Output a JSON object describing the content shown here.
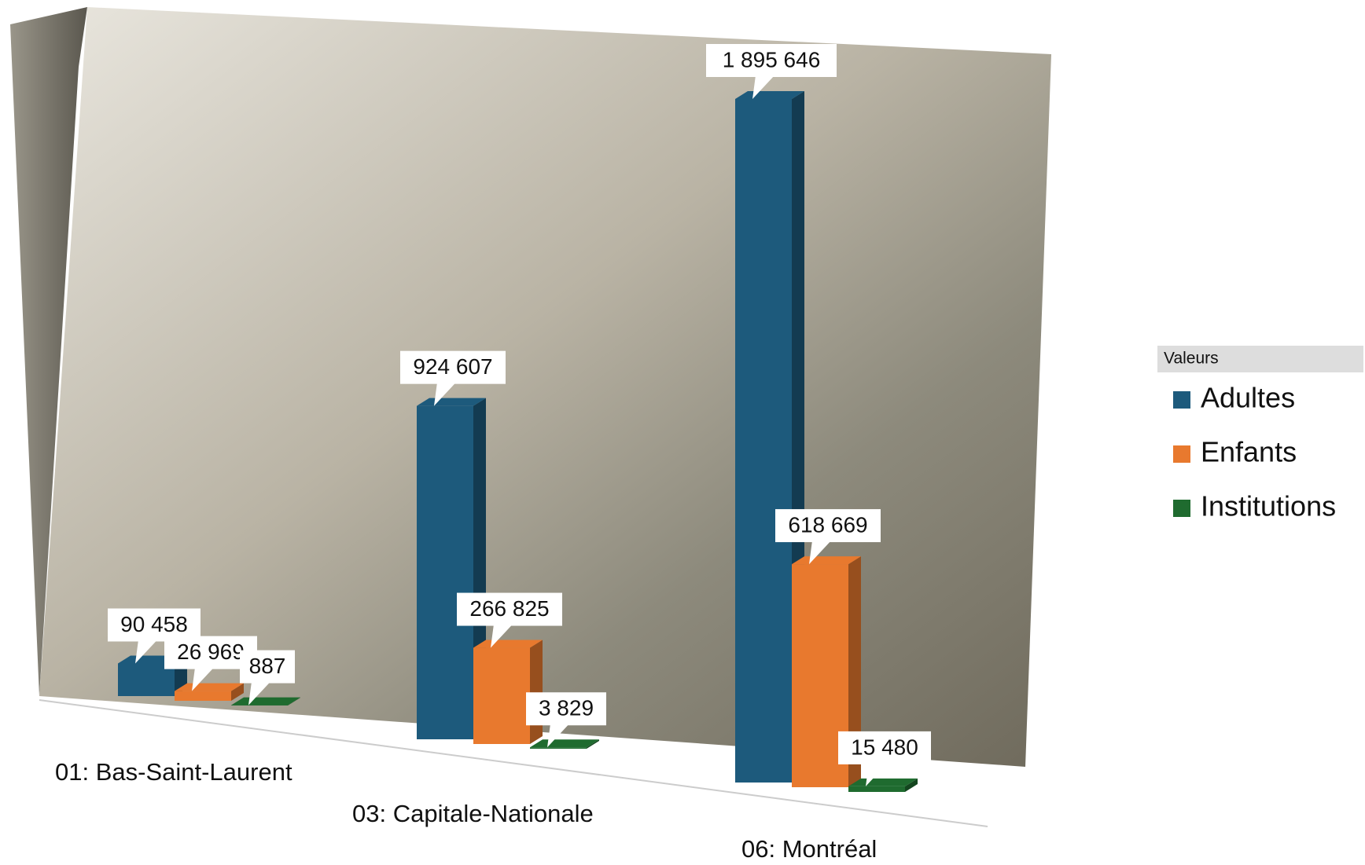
{
  "chart_data": {
    "type": "bar",
    "categories": [
      "01: Bas-Saint-Laurent",
      "03: Capitale-Nationale",
      "06: Montréal"
    ],
    "series": [
      {
        "name": "Adultes",
        "color": "#1d5a7c",
        "values": [
          90458,
          924607,
          1895646
        ],
        "value_labels": [
          "90 458",
          "924 607",
          "1 895 646"
        ]
      },
      {
        "name": "Enfants",
        "color": "#e8792e",
        "values": [
          26969,
          266825,
          618669
        ],
        "value_labels": [
          "26 969",
          "266 825",
          "618 669"
        ]
      },
      {
        "name": "Institutions",
        "color": "#1f6b2f",
        "values": [
          887,
          3829,
          15480
        ],
        "value_labels": [
          "887",
          "3 829",
          "15 480"
        ]
      }
    ],
    "legend_title": "Valeurs",
    "legend": "right"
  }
}
